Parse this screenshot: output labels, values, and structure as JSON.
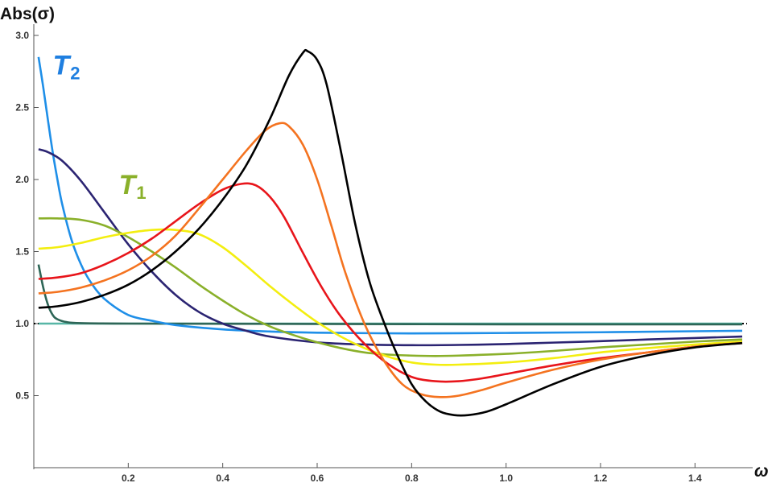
{
  "chart_data": {
    "type": "line",
    "xlabel": "ω",
    "ylabel": "Abs(σ)",
    "xlim": [
      0,
      1.5
    ],
    "ylim": [
      0,
      3.0
    ],
    "x_ticks": [
      {
        "value": 0.2,
        "label": "0.2"
      },
      {
        "value": 0.4,
        "label": "0.4"
      },
      {
        "value": 0.6,
        "label": "0.6"
      },
      {
        "value": 0.8,
        "label": "0.8"
      },
      {
        "value": 1.0,
        "label": "1.0"
      },
      {
        "value": 1.2,
        "label": "1.2"
      },
      {
        "value": 1.4,
        "label": "1.4"
      }
    ],
    "y_ticks": [
      {
        "value": 0.5,
        "label": "0.5"
      },
      {
        "value": 1.0,
        "label": "1.0"
      },
      {
        "value": 1.5,
        "label": "1.5"
      },
      {
        "value": 2.0,
        "label": "2.0"
      },
      {
        "value": 2.5,
        "label": "2.5"
      },
      {
        "value": 3.0,
        "label": "3.0"
      }
    ],
    "reference_line": {
      "y": 1.0,
      "style": "dotted",
      "color": "#000000"
    },
    "annotations": [
      {
        "text": "T",
        "subscript": "2",
        "x": 0.04,
        "y": 2.73,
        "color": "#1f7fe0"
      },
      {
        "text": "T",
        "subscript": "1",
        "x": 0.18,
        "y": 1.9,
        "color": "#8ab02a"
      }
    ],
    "series": [
      {
        "color": "#000000",
        "points": [
          [
            0.01,
            1.11
          ],
          [
            0.05,
            1.12
          ],
          [
            0.1,
            1.15
          ],
          [
            0.15,
            1.2
          ],
          [
            0.2,
            1.27
          ],
          [
            0.25,
            1.37
          ],
          [
            0.3,
            1.5
          ],
          [
            0.35,
            1.66
          ],
          [
            0.4,
            1.86
          ],
          [
            0.45,
            2.1
          ],
          [
            0.5,
            2.42
          ],
          [
            0.54,
            2.72
          ],
          [
            0.57,
            2.88
          ],
          [
            0.58,
            2.89
          ],
          [
            0.6,
            2.83
          ],
          [
            0.62,
            2.66
          ],
          [
            0.65,
            2.2
          ],
          [
            0.68,
            1.7
          ],
          [
            0.71,
            1.3
          ],
          [
            0.74,
            1.02
          ],
          [
            0.77,
            0.78
          ],
          [
            0.8,
            0.58
          ],
          [
            0.83,
            0.46
          ],
          [
            0.86,
            0.39
          ],
          [
            0.89,
            0.365
          ],
          [
            0.92,
            0.365
          ],
          [
            0.96,
            0.39
          ],
          [
            1.0,
            0.44
          ],
          [
            1.1,
            0.58
          ],
          [
            1.2,
            0.7
          ],
          [
            1.3,
            0.78
          ],
          [
            1.4,
            0.835
          ],
          [
            1.5,
            0.865
          ]
        ]
      },
      {
        "color": "#f47320",
        "points": [
          [
            0.01,
            1.21
          ],
          [
            0.05,
            1.22
          ],
          [
            0.1,
            1.25
          ],
          [
            0.15,
            1.3
          ],
          [
            0.2,
            1.37
          ],
          [
            0.25,
            1.47
          ],
          [
            0.3,
            1.61
          ],
          [
            0.35,
            1.8
          ],
          [
            0.4,
            2.0
          ],
          [
            0.45,
            2.2
          ],
          [
            0.49,
            2.34
          ],
          [
            0.52,
            2.39
          ],
          [
            0.54,
            2.37
          ],
          [
            0.57,
            2.24
          ],
          [
            0.6,
            2.0
          ],
          [
            0.63,
            1.68
          ],
          [
            0.66,
            1.35
          ],
          [
            0.7,
            1.0
          ],
          [
            0.74,
            0.75
          ],
          [
            0.78,
            0.58
          ],
          [
            0.82,
            0.51
          ],
          [
            0.86,
            0.49
          ],
          [
            0.9,
            0.5
          ],
          [
            0.95,
            0.54
          ],
          [
            1.0,
            0.59
          ],
          [
            1.1,
            0.68
          ],
          [
            1.2,
            0.75
          ],
          [
            1.3,
            0.8
          ],
          [
            1.4,
            0.84
          ],
          [
            1.5,
            0.865
          ]
        ]
      },
      {
        "color": "#e8151b",
        "points": [
          [
            0.01,
            1.31
          ],
          [
            0.05,
            1.32
          ],
          [
            0.1,
            1.35
          ],
          [
            0.15,
            1.41
          ],
          [
            0.2,
            1.49
          ],
          [
            0.25,
            1.59
          ],
          [
            0.3,
            1.71
          ],
          [
            0.35,
            1.83
          ],
          [
            0.4,
            1.93
          ],
          [
            0.44,
            1.97
          ],
          [
            0.47,
            1.96
          ],
          [
            0.5,
            1.88
          ],
          [
            0.53,
            1.74
          ],
          [
            0.57,
            1.49
          ],
          [
            0.61,
            1.25
          ],
          [
            0.65,
            1.05
          ],
          [
            0.7,
            0.86
          ],
          [
            0.75,
            0.72
          ],
          [
            0.8,
            0.63
          ],
          [
            0.85,
            0.6
          ],
          [
            0.9,
            0.6
          ],
          [
            0.95,
            0.62
          ],
          [
            1.0,
            0.65
          ],
          [
            1.1,
            0.71
          ],
          [
            1.2,
            0.76
          ],
          [
            1.3,
            0.8
          ],
          [
            1.4,
            0.84
          ],
          [
            1.5,
            0.865
          ]
        ]
      },
      {
        "color": "#f3ee10",
        "points": [
          [
            0.01,
            1.52
          ],
          [
            0.05,
            1.53
          ],
          [
            0.1,
            1.56
          ],
          [
            0.15,
            1.6
          ],
          [
            0.2,
            1.63
          ],
          [
            0.25,
            1.65
          ],
          [
            0.3,
            1.65
          ],
          [
            0.35,
            1.62
          ],
          [
            0.4,
            1.53
          ],
          [
            0.45,
            1.4
          ],
          [
            0.5,
            1.26
          ],
          [
            0.55,
            1.13
          ],
          [
            0.6,
            1.01
          ],
          [
            0.65,
            0.91
          ],
          [
            0.7,
            0.83
          ],
          [
            0.75,
            0.77
          ],
          [
            0.8,
            0.73
          ],
          [
            0.85,
            0.715
          ],
          [
            0.9,
            0.715
          ],
          [
            1.0,
            0.73
          ],
          [
            1.1,
            0.76
          ],
          [
            1.2,
            0.8
          ],
          [
            1.3,
            0.83
          ],
          [
            1.4,
            0.855
          ],
          [
            1.5,
            0.875
          ]
        ]
      },
      {
        "color": "#8ab02a",
        "points": [
          [
            0.01,
            1.73
          ],
          [
            0.05,
            1.73
          ],
          [
            0.1,
            1.72
          ],
          [
            0.15,
            1.68
          ],
          [
            0.2,
            1.6
          ],
          [
            0.25,
            1.5
          ],
          [
            0.3,
            1.39
          ],
          [
            0.35,
            1.27
          ],
          [
            0.4,
            1.16
          ],
          [
            0.45,
            1.06
          ],
          [
            0.5,
            0.98
          ],
          [
            0.55,
            0.92
          ],
          [
            0.6,
            0.87
          ],
          [
            0.65,
            0.83
          ],
          [
            0.7,
            0.8
          ],
          [
            0.75,
            0.785
          ],
          [
            0.8,
            0.778
          ],
          [
            0.85,
            0.775
          ],
          [
            0.9,
            0.778
          ],
          [
            1.0,
            0.79
          ],
          [
            1.1,
            0.81
          ],
          [
            1.2,
            0.835
          ],
          [
            1.3,
            0.855
          ],
          [
            1.4,
            0.875
          ],
          [
            1.5,
            0.89
          ]
        ]
      },
      {
        "color": "#2b2472",
        "points": [
          [
            0.01,
            2.21
          ],
          [
            0.03,
            2.19
          ],
          [
            0.06,
            2.13
          ],
          [
            0.1,
            1.99
          ],
          [
            0.15,
            1.77
          ],
          [
            0.2,
            1.55
          ],
          [
            0.25,
            1.36
          ],
          [
            0.3,
            1.2
          ],
          [
            0.35,
            1.08
          ],
          [
            0.4,
            1.0
          ],
          [
            0.45,
            0.95
          ],
          [
            0.5,
            0.91
          ],
          [
            0.6,
            0.87
          ],
          [
            0.7,
            0.855
          ],
          [
            0.8,
            0.85
          ],
          [
            0.9,
            0.852
          ],
          [
            1.0,
            0.858
          ],
          [
            1.1,
            0.868
          ],
          [
            1.2,
            0.878
          ],
          [
            1.3,
            0.89
          ],
          [
            1.4,
            0.9
          ],
          [
            1.5,
            0.91
          ]
        ]
      },
      {
        "color": "#1f8fe8",
        "points": [
          [
            0.01,
            2.85
          ],
          [
            0.02,
            2.64
          ],
          [
            0.03,
            2.41
          ],
          [
            0.04,
            2.19
          ],
          [
            0.05,
            2.0
          ],
          [
            0.06,
            1.83
          ],
          [
            0.08,
            1.58
          ],
          [
            0.1,
            1.41
          ],
          [
            0.12,
            1.29
          ],
          [
            0.15,
            1.17
          ],
          [
            0.2,
            1.06
          ],
          [
            0.25,
            1.02
          ],
          [
            0.3,
            0.99
          ],
          [
            0.4,
            0.96
          ],
          [
            0.5,
            0.945
          ],
          [
            0.6,
            0.937
          ],
          [
            0.8,
            0.932
          ],
          [
            1.0,
            0.935
          ],
          [
            1.2,
            0.94
          ],
          [
            1.4,
            0.947
          ],
          [
            1.5,
            0.95
          ]
        ]
      },
      {
        "color": "#2e6657",
        "points": [
          [
            0.01,
            1.41
          ],
          [
            0.02,
            1.25
          ],
          [
            0.03,
            1.13
          ],
          [
            0.04,
            1.06
          ],
          [
            0.05,
            1.03
          ],
          [
            0.07,
            1.01
          ],
          [
            0.1,
            1.003
          ],
          [
            0.2,
            1.0
          ],
          [
            0.5,
            0.998
          ],
          [
            1.0,
            0.995
          ],
          [
            1.5,
            0.995
          ]
        ]
      },
      {
        "color": "#57b6a6",
        "points": [
          [
            0.01,
            1.0
          ],
          [
            0.5,
            1.0
          ],
          [
            1.0,
            1.0
          ],
          [
            1.5,
            1.0
          ]
        ]
      }
    ]
  }
}
